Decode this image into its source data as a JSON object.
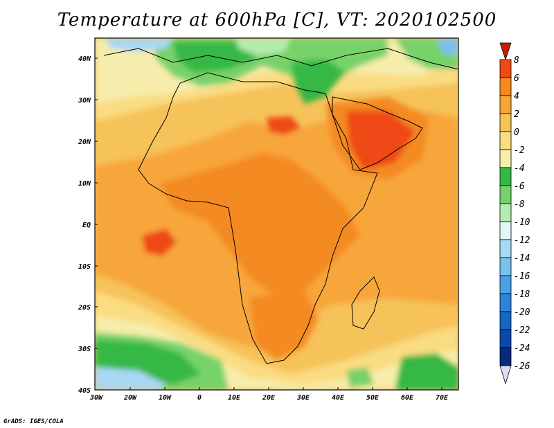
{
  "title": "Temperature at 600hPa [C], VT: 2020102500",
  "credit": "GrADS: IGES/COLA",
  "map": {
    "lon_range": [
      -30,
      75
    ],
    "lat_range": [
      -40,
      45
    ],
    "lat_ticks": [
      "40N",
      "30N",
      "20N",
      "10N",
      "EQ",
      "10S",
      "20S",
      "30S",
      "40S"
    ],
    "lon_ticks": [
      "30W",
      "20W",
      "10W",
      "0",
      "10E",
      "20E",
      "30E",
      "40E",
      "50E",
      "60E",
      "70E"
    ]
  },
  "colorbar": {
    "labels": [
      "8",
      "6",
      "4",
      "2",
      "0",
      "-2",
      "-4",
      "-6",
      "-8",
      "-10",
      "-12",
      "-14",
      "-16",
      "-18",
      "-20",
      "-22",
      "-24",
      "-26"
    ],
    "colors": {
      "gt8": "#c81e00",
      "6": "#ee4a14",
      "4": "#f48a20",
      "2": "#f7a63a",
      "0": "#f6c25a",
      "-2": "#fadc82",
      "-4": "#f6ecac",
      "-6": "#36b844",
      "-8": "#78d26a",
      "-10": "#b4ecb0",
      "-12": "#e2f6fa",
      "-14": "#a8d8f4",
      "-16": "#7cc0ee",
      "-18": "#4aa0e4",
      "-20": "#2c84d8",
      "-22": "#1666c4",
      "-24": "#0c48a8",
      "-26": "#082a78",
      "lt-26": "#dcdcf4"
    }
  }
}
